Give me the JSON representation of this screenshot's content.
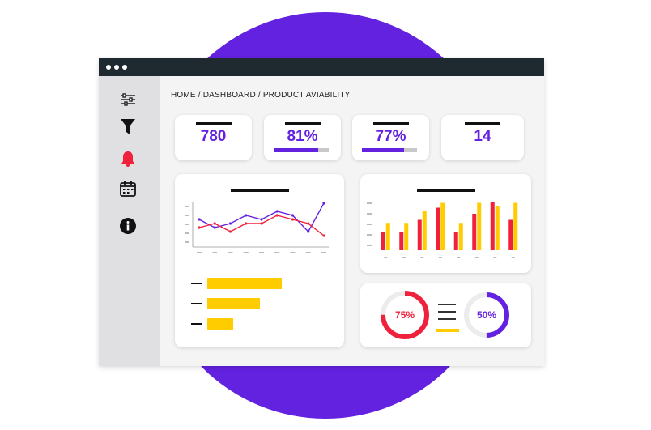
{
  "breadcrumb": "HOME / DASHBOARD / PRODUCT AVIABILITY",
  "colors": {
    "purple": "#6321e0",
    "red": "#f0213c",
    "yellow": "#ffcc00",
    "titlebar": "#1e2a30"
  },
  "sidebar": {
    "items": [
      {
        "icon": "sliders-icon"
      },
      {
        "icon": "filter-icon"
      },
      {
        "icon": "bell-icon"
      },
      {
        "icon": "calendar-icon"
      },
      {
        "icon": "info-icon"
      }
    ]
  },
  "stats": [
    {
      "value": "780"
    },
    {
      "value": "81%",
      "progress": 0.81
    },
    {
      "value": "77%",
      "progress": 0.77
    },
    {
      "value": "14"
    }
  ],
  "chart_data": [
    {
      "type": "line",
      "x_count": 9,
      "series": [
        {
          "color": "#6321e0",
          "values": [
            6,
            4,
            5,
            7,
            6,
            8,
            7,
            3,
            10
          ]
        },
        {
          "color": "#f0213c",
          "values": [
            4,
            5,
            3,
            5,
            5,
            7,
            6,
            5,
            2
          ]
        }
      ],
      "ylim": [
        0,
        10
      ]
    },
    {
      "type": "bar",
      "category_count": 8,
      "series": [
        {
          "color": "#f0213c",
          "values": [
            3,
            3,
            5,
            7,
            3,
            6,
            8,
            5
          ]
        },
        {
          "color": "#ffcc00",
          "values": [
            4.5,
            4.5,
            6.5,
            7.8,
            4.5,
            7.8,
            7.2,
            7.8
          ]
        }
      ],
      "ylim": [
        0,
        8
      ]
    }
  ],
  "horizontal_bars": [
    {
      "value": 0.92
    },
    {
      "value": 0.65
    },
    {
      "value": 0.32
    }
  ],
  "donuts": [
    {
      "label": "75%",
      "value": 0.75,
      "color": "#f0213c"
    },
    {
      "label": "50%",
      "value": 0.5,
      "color": "#6321e0"
    }
  ]
}
